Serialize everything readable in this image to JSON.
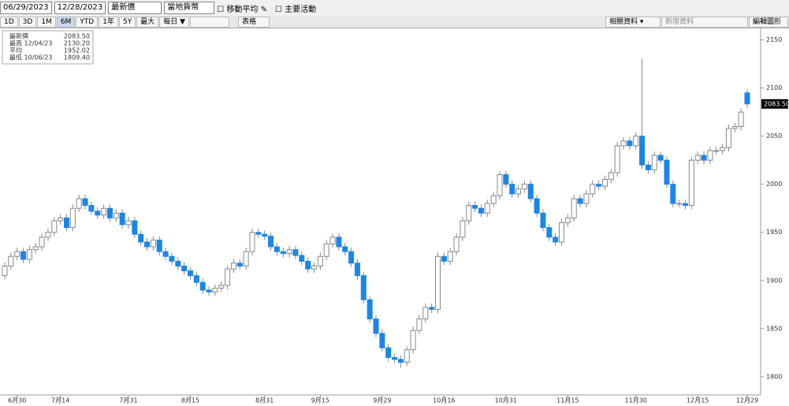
{
  "toolbar": {
    "start_date": "06/29/2023",
    "end_date": "12/28/2023",
    "field": "最新價",
    "currency": "當地貨幣",
    "moving_average": "移動平均",
    "key_events": "主要活動",
    "periods": [
      "1D",
      "3D",
      "1M",
      "6M",
      "YTD",
      "1年",
      "5Y",
      "最大"
    ],
    "frequency": "每日 ▼",
    "table": "表格",
    "related": "相關資料 ▾",
    "add_data": "新增資料",
    "edit_chart": "編輯圖形"
  },
  "chart_data": {
    "type": "candlestick",
    "legend": [
      {
        "name": "最新價",
        "value": "2083.50"
      },
      {
        "name": "最高 12/04/23",
        "value": "2130.20"
      },
      {
        "name": "平均",
        "value": "1952.02"
      },
      {
        "name": "最低 10/06/23",
        "value": "1809.40"
      }
    ],
    "last_label": "2083.50",
    "up_color": "#ffffff",
    "down_color": "#1a86e8",
    "wick_color": "#888888",
    "open": [
      1905,
      1915,
      1925,
      1930,
      1922,
      1932,
      1935,
      1945,
      1950,
      1962,
      1965,
      1955,
      1975,
      1985,
      1978,
      1972,
      1968,
      1975,
      1965,
      1970,
      1958,
      1962,
      1948,
      1940,
      1935,
      1942,
      1930,
      1925,
      1920,
      1915,
      1910,
      1905,
      1898,
      1890,
      1888,
      1892,
      1895,
      1912,
      1918,
      1915,
      1930,
      1950,
      1948,
      1946,
      1935,
      1930,
      1928,
      1932,
      1926,
      1920,
      1912,
      1915,
      1925,
      1938,
      1945,
      1935,
      1930,
      1918,
      1905,
      1880,
      1860,
      1845,
      1830,
      1820,
      1818,
      1815,
      1828,
      1848,
      1860,
      1872,
      1870,
      1925,
      1920,
      1930,
      1945,
      1962,
      1978,
      1975,
      1970,
      1980,
      1988,
      2010,
      2000,
      1990,
      1995,
      2000,
      1985,
      1970,
      1955,
      1945,
      1940,
      1960,
      1965,
      1985,
      1980,
      1990,
      2000,
      1998,
      2005,
      2012,
      2040,
      2045,
      2040,
      2050,
      2020,
      2015,
      2030,
      2025,
      2000,
      1980,
      1980,
      1978,
      2025,
      2030,
      2025,
      2035,
      2035,
      2038,
      2058,
      2060,
      2095
    ],
    "high": [
      1919,
      1929,
      1934,
      1934,
      1936,
      1939,
      1949,
      1954,
      1966,
      1969,
      1969,
      1979,
      1989,
      1989,
      1982,
      1976,
      1979,
      1979,
      1974,
      1974,
      1966,
      1966,
      1952,
      1944,
      1946,
      1946,
      1934,
      1929,
      1924,
      1919,
      1914,
      1909,
      1902,
      1894,
      1896,
      1899,
      1916,
      1922,
      1922,
      1934,
      1954,
      1954,
      1952,
      1950,
      1939,
      1934,
      1936,
      1936,
      1930,
      1924,
      1919,
      1929,
      1942,
      1949,
      1949,
      1939,
      1934,
      1922,
      1909,
      1884,
      1864,
      1849,
      1834,
      1824,
      1822,
      1832,
      1852,
      1864,
      1876,
      1876,
      1929,
      1929,
      1934,
      1949,
      1966,
      1982,
      1982,
      1979,
      1984,
      1992,
      2014,
      2014,
      2004,
      1999,
      2004,
      2004,
      1989,
      1974,
      1959,
      1949,
      1964,
      1969,
      1989,
      1989,
      1994,
      2004,
      2004,
      2009,
      2016,
      2044,
      2049,
      2049,
      2054,
      2130.2,
      2024,
      2034,
      2034,
      2029,
      2004,
      1984,
      1984,
      2029,
      2034,
      2034,
      2039,
      2039,
      2042,
      2062,
      2064,
      2079,
      2099
    ],
    "low": [
      1901,
      1911,
      1921,
      1918,
      1918,
      1928,
      1931,
      1941,
      1946,
      1958,
      1951,
      1951,
      1971,
      1974,
      1968,
      1964,
      1964,
      1961,
      1961,
      1954,
      1954,
      1944,
      1936,
      1931,
      1931,
      1926,
      1921,
      1916,
      1911,
      1906,
      1901,
      1894,
      1886,
      1884,
      1884,
      1888,
      1891,
      1908,
      1911,
      1911,
      1926,
      1944,
      1942,
      1931,
      1926,
      1924,
      1924,
      1922,
      1916,
      1908,
      1908,
      1911,
      1921,
      1934,
      1931,
      1926,
      1914,
      1901,
      1876,
      1856,
      1841,
      1826,
      1816,
      1814,
      1809.4,
      1811,
      1824,
      1844,
      1856,
      1866,
      1866,
      1916,
      1916,
      1926,
      1941,
      1958,
      1971,
      1966,
      1966,
      1976,
      1984,
      1996,
      1986,
      1986,
      1991,
      1981,
      1966,
      1951,
      1941,
      1936,
      1936,
      1956,
      1961,
      1976,
      1976,
      1986,
      1994,
      1994,
      2001,
      2008,
      2036,
      2036,
      2036,
      2016,
      2011,
      2011,
      2021,
      1996,
      1976,
      1976,
      1974,
      1974,
      2021,
      2021,
      2021,
      2031,
      2031,
      2034,
      2054,
      2056,
      2079
    ],
    "close": [
      1915,
      1925,
      1930,
      1922,
      1932,
      1935,
      1945,
      1950,
      1962,
      1965,
      1955,
      1975,
      1985,
      1978,
      1972,
      1968,
      1975,
      1965,
      1970,
      1958,
      1962,
      1948,
      1940,
      1935,
      1942,
      1930,
      1925,
      1920,
      1915,
      1910,
      1905,
      1898,
      1890,
      1888,
      1892,
      1895,
      1912,
      1918,
      1915,
      1930,
      1950,
      1948,
      1946,
      1935,
      1930,
      1928,
      1932,
      1926,
      1920,
      1912,
      1915,
      1925,
      1938,
      1945,
      1935,
      1930,
      1918,
      1905,
      1880,
      1860,
      1845,
      1830,
      1820,
      1818,
      1815,
      1828,
      1848,
      1860,
      1872,
      1870,
      1925,
      1920,
      1930,
      1945,
      1962,
      1978,
      1975,
      1970,
      1980,
      1988,
      2010,
      2000,
      1990,
      1995,
      2000,
      1985,
      1970,
      1955,
      1945,
      1940,
      1960,
      1965,
      1985,
      1980,
      1990,
      2000,
      1998,
      2005,
      2012,
      2040,
      2045,
      2040,
      2050,
      2020,
      2015,
      2030,
      2025,
      2000,
      1980,
      1980,
      1978,
      2025,
      2030,
      2025,
      2035,
      2035,
      2038,
      2058,
      2060,
      2075,
      2083.5
    ],
    "ylim": [
      1781,
      2162
    ],
    "yticks": [
      1800,
      1850,
      1900,
      1950,
      2000,
      2050,
      2100,
      2150
    ],
    "xticks": [
      {
        "value": 2,
        "label": "6月30"
      },
      {
        "value": 9,
        "label": "7月14"
      },
      {
        "value": 20,
        "label": "7月31"
      },
      {
        "value": 30,
        "label": "8月15"
      },
      {
        "value": 42,
        "label": "8月31"
      },
      {
        "value": 51,
        "label": "9月15"
      },
      {
        "value": 61,
        "label": "9月29"
      },
      {
        "value": 71,
        "label": "10月16"
      },
      {
        "value": 81,
        "label": "10月31"
      },
      {
        "value": 91,
        "label": "11月15"
      },
      {
        "value": 102,
        "label": "11月30"
      },
      {
        "value": 112,
        "label": "12月15"
      },
      {
        "value": 120,
        "label": "12月29"
      }
    ]
  }
}
